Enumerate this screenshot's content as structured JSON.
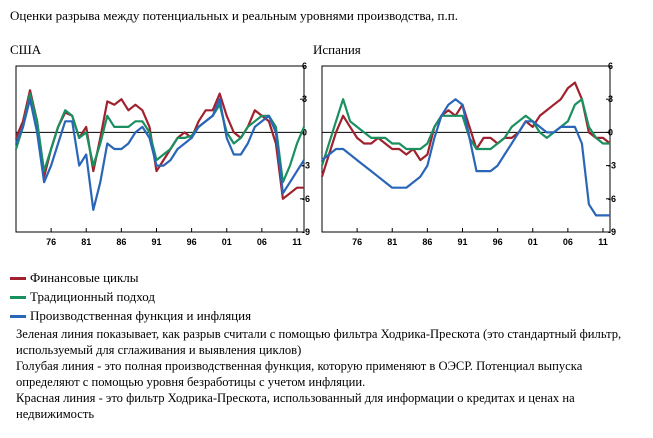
{
  "title": "Оценки разрыва между потенциальных и реальным уровнями производства, п.п.",
  "legend": [
    {
      "label": "Финансовые циклы",
      "color": "#a0222e"
    },
    {
      "label": "Традиционный подход",
      "color": "#1a9060"
    },
    {
      "label": "Производственная функция и инфляция",
      "color": "#2a66b8"
    }
  ],
  "notes": [
    "Зеленая линия показывает, как разрыв считали с помощью фильтра Ходрика-Прескота (это стандартный фильтр, используемый для сглаживания и выявления циклов)",
    "Голубая линия - это полная производственная функция, которую применяют в ОЭСР. Потенциал выпуска определяют с помощью уровня безработицы с учетом инфляции.",
    "Красная линия -  это фильтр Ходрика-Прескота, использованный для информации о кредитах и ценах на недвижимость"
  ],
  "chart_data": [
    {
      "type": "line",
      "title": "США",
      "x_ticks": [
        "76",
        "81",
        "86",
        "91",
        "96",
        "01",
        "06",
        "11"
      ],
      "y_ticks": [
        6,
        3,
        0,
        -3,
        -6,
        -9
      ],
      "xlim": [
        1971,
        2012
      ],
      "ylim": [
        -9,
        6
      ],
      "grid": false,
      "series": [
        {
          "name": "Финансовые циклы",
          "color": "#a0222e",
          "x": [
            1971,
            1972,
            1973,
            1974,
            1975,
            1976,
            1977,
            1978,
            1979,
            1980,
            1981,
            1982,
            1983,
            1984,
            1985,
            1986,
            1987,
            1988,
            1989,
            1990,
            1991,
            1992,
            1993,
            1994,
            1995,
            1996,
            1997,
            1998,
            1999,
            2000,
            2001,
            2002,
            2003,
            2004,
            2005,
            2006,
            2007,
            2008,
            2009,
            2010,
            2011,
            2012
          ],
          "y": [
            -0.5,
            1.0,
            3.8,
            1.0,
            -4.0,
            -1.5,
            0.5,
            1.8,
            1.5,
            -0.5,
            0.5,
            -3.5,
            -0.5,
            2.8,
            2.5,
            3.0,
            2.0,
            2.5,
            2.0,
            0.5,
            -3.5,
            -2.5,
            -1.5,
            -0.5,
            0.0,
            -0.5,
            1.0,
            2.0,
            2.0,
            3.5,
            1.5,
            0.0,
            -0.5,
            0.5,
            2.0,
            1.5,
            1.0,
            -1.0,
            -6.0,
            -5.5,
            -5.0,
            -5.0
          ]
        },
        {
          "name": "Традиционный подход",
          "color": "#1a9060",
          "x": [
            1971,
            1972,
            1973,
            1974,
            1975,
            1976,
            1977,
            1978,
            1979,
            1980,
            1981,
            1982,
            1983,
            1984,
            1985,
            1986,
            1987,
            1988,
            1989,
            1990,
            1991,
            1992,
            1993,
            1994,
            1995,
            1996,
            1997,
            1998,
            1999,
            2000,
            2001,
            2002,
            2003,
            2004,
            2005,
            2006,
            2007,
            2008,
            2009,
            2010,
            2011,
            2012
          ],
          "y": [
            -1.5,
            0.5,
            3.5,
            1.0,
            -3.5,
            -1.5,
            0.5,
            2.0,
            1.5,
            -0.5,
            0.0,
            -3.0,
            -1.0,
            1.5,
            0.5,
            0.5,
            0.5,
            1.0,
            1.0,
            0.0,
            -2.5,
            -2.0,
            -1.5,
            -0.5,
            -0.5,
            -0.3,
            0.5,
            1.0,
            1.5,
            2.5,
            0.0,
            -1.0,
            -0.5,
            0.5,
            1.0,
            1.5,
            1.5,
            0.5,
            -4.5,
            -3.0,
            -1.0,
            0.5
          ]
        },
        {
          "name": "Производственная функция и инфляция",
          "color": "#2a66b8",
          "x": [
            1971,
            1972,
            1973,
            1974,
            1975,
            1976,
            1977,
            1978,
            1979,
            1980,
            1981,
            1982,
            1983,
            1984,
            1985,
            1986,
            1987,
            1988,
            1989,
            1990,
            1991,
            1992,
            1993,
            1994,
            1995,
            1996,
            1997,
            1998,
            1999,
            2000,
            2001,
            2002,
            2003,
            2004,
            2005,
            2006,
            2007,
            2008,
            2009,
            2010,
            2011,
            2012
          ],
          "y": [
            -1.0,
            0.5,
            3.0,
            0.0,
            -4.5,
            -3.0,
            -1.0,
            1.0,
            1.0,
            -3.0,
            -2.0,
            -7.0,
            -4.5,
            -1.0,
            -1.5,
            -1.5,
            -1.0,
            0.0,
            0.5,
            -0.5,
            -3.0,
            -3.0,
            -2.5,
            -1.5,
            -1.0,
            -0.5,
            0.5,
            1.0,
            1.5,
            3.0,
            -0.5,
            -2.0,
            -2.0,
            -1.0,
            0.5,
            1.0,
            1.5,
            0.0,
            -5.5,
            -4.5,
            -3.5,
            -2.5
          ]
        }
      ]
    },
    {
      "type": "line",
      "title": "Испания",
      "x_ticks": [
        "76",
        "81",
        "86",
        "91",
        "96",
        "01",
        "06",
        "11"
      ],
      "y_ticks": [
        6,
        3,
        0,
        -3,
        -6,
        -9
      ],
      "xlim": [
        1971,
        2012
      ],
      "ylim": [
        -9,
        6
      ],
      "grid": false,
      "series": [
        {
          "name": "Финансовые циклы",
          "color": "#a0222e",
          "x": [
            1971,
            1972,
            1973,
            1974,
            1975,
            1976,
            1977,
            1978,
            1979,
            1980,
            1981,
            1982,
            1983,
            1984,
            1985,
            1986,
            1987,
            1988,
            1989,
            1990,
            1991,
            1992,
            1993,
            1994,
            1995,
            1996,
            1997,
            1998,
            1999,
            2000,
            2001,
            2002,
            2003,
            2004,
            2005,
            2006,
            2007,
            2008,
            2009,
            2010,
            2011,
            2012
          ],
          "y": [
            -4.0,
            -2.0,
            0.0,
            1.5,
            0.5,
            -0.5,
            -1.0,
            -1.0,
            -0.5,
            -1.0,
            -1.5,
            -1.5,
            -2.0,
            -1.5,
            -2.5,
            -2.0,
            0.5,
            1.5,
            2.0,
            1.5,
            2.5,
            0.5,
            -1.5,
            -0.5,
            -0.5,
            -1.0,
            -0.5,
            -0.5,
            0.0,
            1.0,
            0.5,
            1.5,
            2.0,
            2.5,
            3.0,
            4.0,
            4.5,
            3.0,
            0.0,
            -0.5,
            -0.5,
            -1.0
          ]
        },
        {
          "name": "Традиционный подход",
          "color": "#1a9060",
          "x": [
            1971,
            1972,
            1973,
            1974,
            1975,
            1976,
            1977,
            1978,
            1979,
            1980,
            1981,
            1982,
            1983,
            1984,
            1985,
            1986,
            1987,
            1988,
            1989,
            1990,
            1991,
            1992,
            1993,
            1994,
            1995,
            1996,
            1997,
            1998,
            1999,
            2000,
            2001,
            2002,
            2003,
            2004,
            2005,
            2006,
            2007,
            2008,
            2009,
            2010,
            2011,
            2012
          ],
          "y": [
            -3.0,
            -1.0,
            1.0,
            3.0,
            1.0,
            0.5,
            0.0,
            -0.5,
            -0.5,
            -0.5,
            -1.0,
            -1.0,
            -1.5,
            -1.5,
            -1.5,
            -1.0,
            0.5,
            1.5,
            1.5,
            1.5,
            1.5,
            -0.5,
            -1.5,
            -1.5,
            -1.5,
            -1.0,
            -0.5,
            0.5,
            1.0,
            1.5,
            1.0,
            0.0,
            -0.5,
            0.0,
            0.5,
            1.0,
            2.5,
            3.0,
            0.5,
            -0.5,
            -1.0,
            -1.0
          ]
        },
        {
          "name": "Производственная функция и инфляция",
          "color": "#2a66b8",
          "x": [
            1971,
            1972,
            1973,
            1974,
            1975,
            1976,
            1977,
            1978,
            1979,
            1980,
            1981,
            1982,
            1983,
            1984,
            1985,
            1986,
            1987,
            1988,
            1989,
            1990,
            1991,
            1992,
            1993,
            1994,
            1995,
            1996,
            1997,
            1998,
            1999,
            2000,
            2001,
            2002,
            2003,
            2004,
            2005,
            2006,
            2007,
            2008,
            2009,
            2010,
            2011,
            2012
          ],
          "y": [
            -2.5,
            -2.0,
            -1.5,
            -1.5,
            -2.0,
            -2.5,
            -3.0,
            -3.5,
            -4.0,
            -4.5,
            -5.0,
            -5.0,
            -5.0,
            -4.5,
            -4.0,
            -3.0,
            -0.5,
            1.5,
            2.5,
            3.0,
            2.5,
            -0.5,
            -3.5,
            -3.5,
            -3.5,
            -3.0,
            -2.0,
            -1.0,
            0.0,
            1.0,
            1.0,
            0.5,
            0.0,
            0.0,
            0.5,
            0.5,
            0.5,
            -1.0,
            -6.5,
            -7.5,
            -7.5,
            -7.5
          ]
        }
      ]
    }
  ]
}
